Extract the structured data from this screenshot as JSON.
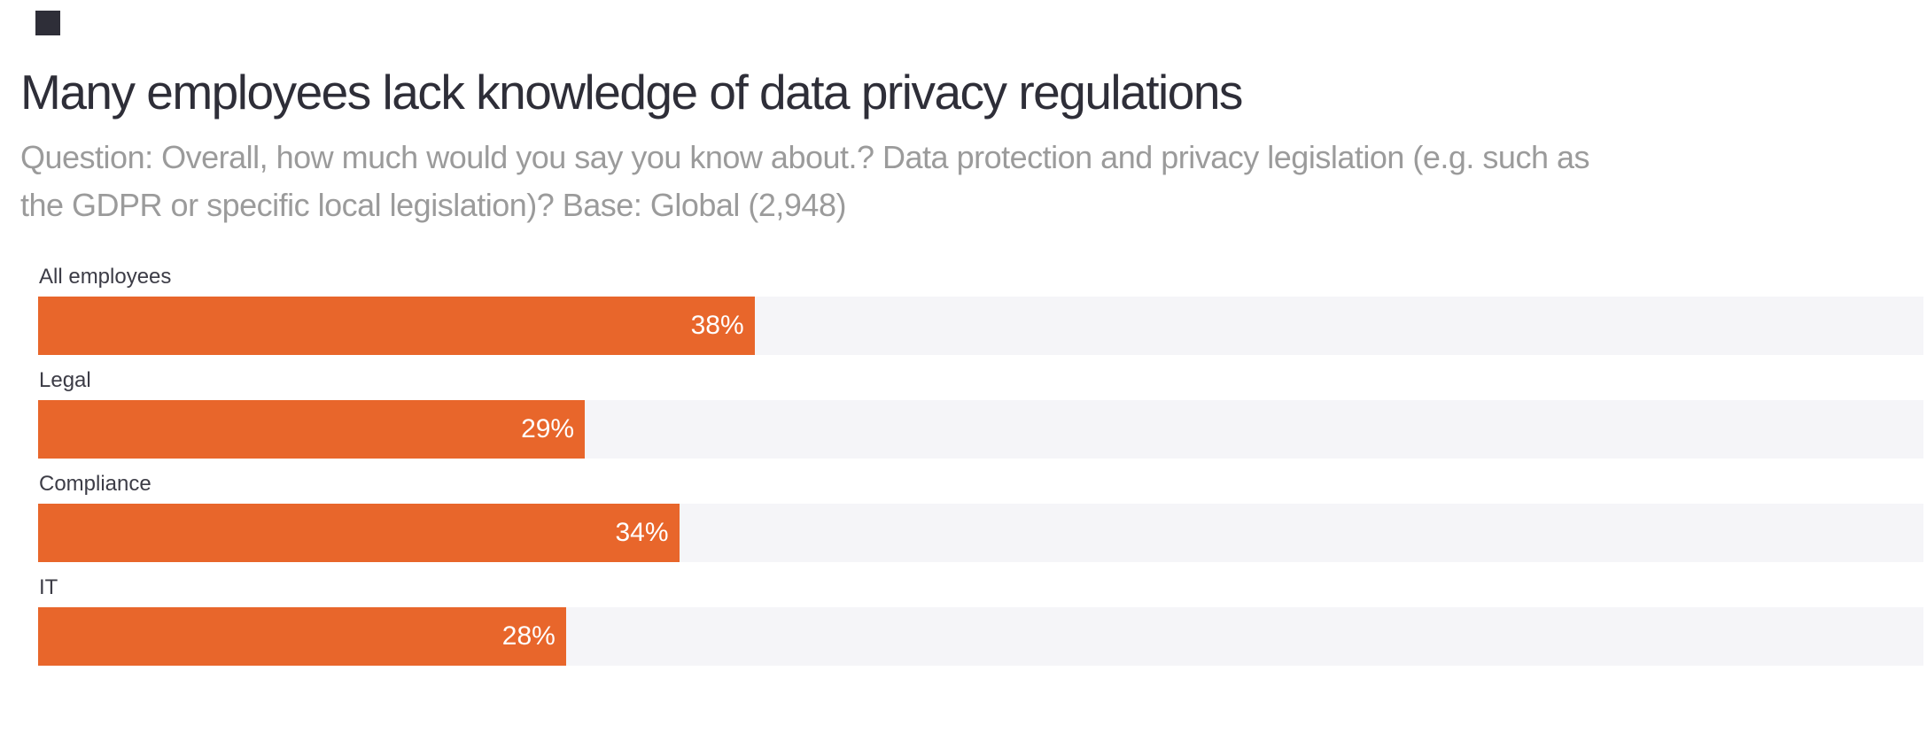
{
  "page": {
    "background_color": "#ffffff"
  },
  "logo": {
    "color": "#2e2e38"
  },
  "header": {
    "title": "Many employees lack knowledge of data privacy regulations",
    "subtitle_lines": [
      "Question: Overall, how much would you say you know about.? Data protection and privacy legislation (e.g. such as",
      "the GDPR or specific local legislation)? Base: Global (2,948)"
    ],
    "title_color": "#2e2e38",
    "subtitle_color": "#9b9b9b"
  },
  "chart_data": {
    "type": "bar",
    "orientation": "horizontal",
    "title": "Many employees lack knowledge of data privacy regulations",
    "categories": [
      "All employees",
      "Legal",
      "Compliance",
      "IT"
    ],
    "values": [
      38,
      29,
      34,
      28
    ],
    "value_labels": [
      "38%",
      "29%",
      "34%",
      "28%"
    ],
    "xlabel": "",
    "ylabel": "",
    "xlim": [
      0,
      100
    ],
    "grid": false,
    "legend": false,
    "bar_color": "#e8662b",
    "track_color": "#f5f5f8",
    "value_label_color": "#ffffff",
    "category_label_color": "#3c3c46"
  }
}
